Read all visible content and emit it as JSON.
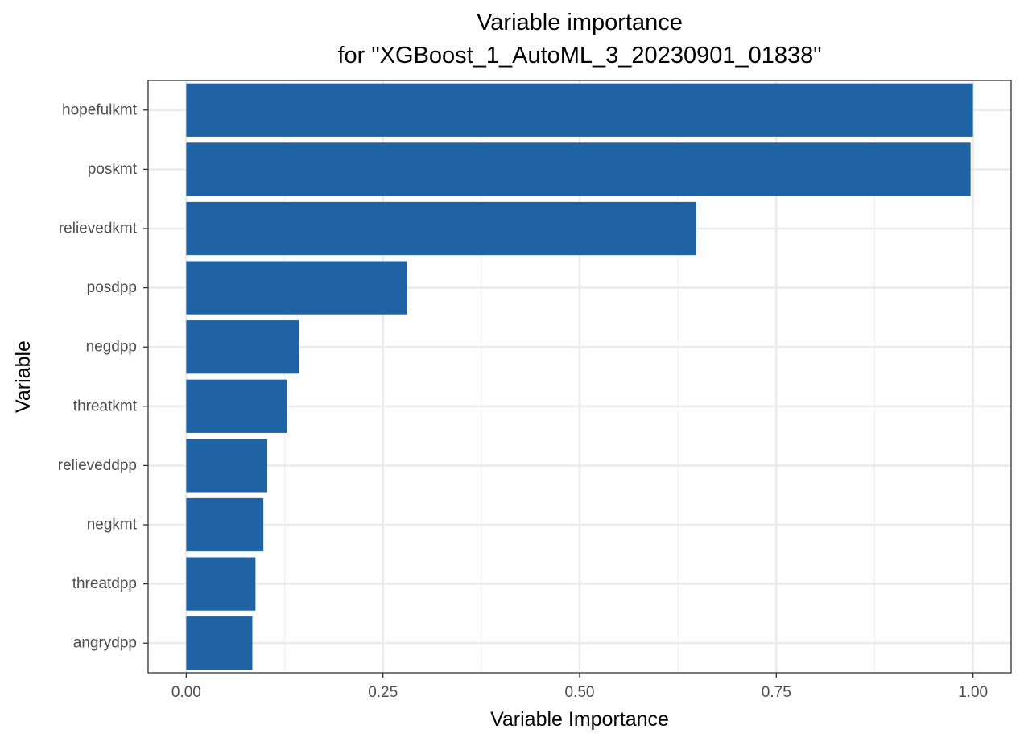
{
  "chart_data": {
    "type": "bar",
    "orientation": "horizontal",
    "title": "Variable importance",
    "subtitle": "for \"XGBoost_1_AutoML_3_20230901_01838\"",
    "xlabel": "Variable Importance",
    "ylabel": "Variable",
    "xlim": [
      -0.0485,
      1.0485
    ],
    "xticks": [
      0,
      0.25,
      0.5,
      0.75,
      1.0
    ],
    "xtick_labels": [
      "0.00",
      "0.25",
      "0.50",
      "0.75",
      "1.00"
    ],
    "grid": true,
    "bar_color": "#1f63a5",
    "categories": [
      "hopefulkmt",
      "poskmt",
      "relievedkmt",
      "posdpp",
      "negdpp",
      "threatkmt",
      "relieveddpp",
      "negkmt",
      "threatdpp",
      "angrydpp"
    ],
    "values": [
      1.0,
      0.997,
      0.648,
      0.28,
      0.143,
      0.128,
      0.103,
      0.098,
      0.088,
      0.084
    ]
  }
}
